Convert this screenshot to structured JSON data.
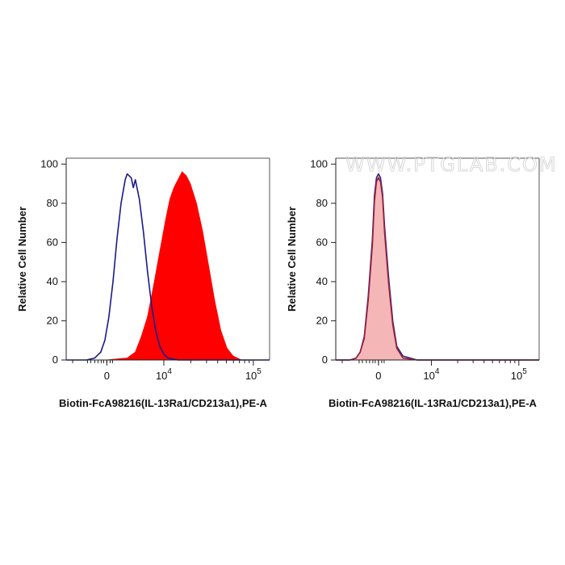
{
  "watermark": "WWW.PTGLAB.COM",
  "chart_data": [
    {
      "type": "area",
      "xlabel": "Biotin-FcA98216(IL-13Ra1/CD213a1),PE-A",
      "ylabel": "Relative Cell Number",
      "y_ticks": [
        "0",
        "20",
        "40",
        "60",
        "80",
        "100"
      ],
      "x_ticks": [
        {
          "base": "0",
          "exp": ""
        },
        {
          "base": "10",
          "exp": "4"
        },
        {
          "base": "10",
          "exp": "5"
        }
      ],
      "ylim": [
        0,
        103
      ],
      "series": [
        {
          "color": "#ff0000",
          "style": "filled",
          "points": [
            [
              0.2,
              0
            ],
            [
              0.3,
              1
            ],
            [
              0.34,
              4
            ],
            [
              0.37,
              12
            ],
            [
              0.4,
              22
            ],
            [
              0.43,
              38
            ],
            [
              0.46,
              55
            ],
            [
              0.49,
              72
            ],
            [
              0.51,
              82
            ],
            [
              0.53,
              88
            ],
            [
              0.55,
              92
            ],
            [
              0.57,
              96
            ],
            [
              0.59,
              94
            ],
            [
              0.61,
              90
            ],
            [
              0.64,
              80
            ],
            [
              0.67,
              66
            ],
            [
              0.7,
              48
            ],
            [
              0.73,
              30
            ],
            [
              0.76,
              15
            ],
            [
              0.79,
              6
            ],
            [
              0.82,
              2
            ],
            [
              0.86,
              0
            ]
          ]
        },
        {
          "color": "#1a1a8c",
          "style": "line",
          "points": [
            [
              0.0,
              0
            ],
            [
              0.1,
              0
            ],
            [
              0.14,
              1
            ],
            [
              0.17,
              4
            ],
            [
              0.19,
              10
            ],
            [
              0.21,
              22
            ],
            [
              0.23,
              40
            ],
            [
              0.25,
              62
            ],
            [
              0.27,
              80
            ],
            [
              0.29,
              92
            ],
            [
              0.3,
              95
            ],
            [
              0.32,
              93
            ],
            [
              0.33,
              88
            ],
            [
              0.34,
              92
            ],
            [
              0.36,
              82
            ],
            [
              0.38,
              65
            ],
            [
              0.4,
              45
            ],
            [
              0.42,
              28
            ],
            [
              0.44,
              15
            ],
            [
              0.46,
              7
            ],
            [
              0.48,
              3
            ],
            [
              0.5,
              1
            ],
            [
              0.55,
              0
            ],
            [
              1.0,
              0
            ]
          ]
        }
      ]
    },
    {
      "type": "area",
      "xlabel": "Biotin-FcA98216(IL-13Ra1/CD213a1),PE-A",
      "ylabel": "Relative Cell Number",
      "y_ticks": [
        "0",
        "20",
        "40",
        "60",
        "80",
        "100"
      ],
      "x_ticks": [
        {
          "base": "0",
          "exp": ""
        },
        {
          "base": "10",
          "exp": "4"
        },
        {
          "base": "10",
          "exp": "5"
        }
      ],
      "ylim": [
        0,
        103
      ],
      "series": [
        {
          "color": "#f4b6b6",
          "style": "filled",
          "points": [
            [
              0.0,
              0
            ],
            [
              0.07,
              0
            ],
            [
              0.1,
              1
            ],
            [
              0.12,
              4
            ],
            [
              0.14,
              12
            ],
            [
              0.16,
              32
            ],
            [
              0.18,
              60
            ],
            [
              0.19,
              82
            ],
            [
              0.2,
              92
            ],
            [
              0.21,
              94
            ],
            [
              0.22,
              92
            ],
            [
              0.23,
              84
            ],
            [
              0.24,
              66
            ],
            [
              0.26,
              40
            ],
            [
              0.28,
              18
            ],
            [
              0.3,
              6
            ],
            [
              0.33,
              1
            ],
            [
              0.4,
              0
            ],
            [
              1.0,
              0
            ]
          ]
        },
        {
          "color": "#2a2a8c",
          "style": "line",
          "points": [
            [
              0.0,
              0
            ],
            [
              0.07,
              0
            ],
            [
              0.1,
              1
            ],
            [
              0.12,
              4
            ],
            [
              0.14,
              12
            ],
            [
              0.16,
              33
            ],
            [
              0.18,
              62
            ],
            [
              0.19,
              84
            ],
            [
              0.2,
              93
            ],
            [
              0.21,
              95
            ],
            [
              0.22,
              93
            ],
            [
              0.23,
              85
            ],
            [
              0.24,
              68
            ],
            [
              0.26,
              42
            ],
            [
              0.28,
              20
            ],
            [
              0.3,
              7
            ],
            [
              0.33,
              2
            ],
            [
              0.4,
              0
            ],
            [
              1.0,
              0
            ]
          ]
        },
        {
          "color": "#9a1f3a",
          "style": "line",
          "points": [
            [
              0.0,
              0
            ],
            [
              0.07,
              0
            ],
            [
              0.1,
              1
            ],
            [
              0.12,
              4
            ],
            [
              0.14,
              11
            ],
            [
              0.16,
              31
            ],
            [
              0.18,
              59
            ],
            [
              0.19,
              81
            ],
            [
              0.2,
              91
            ],
            [
              0.21,
              93
            ],
            [
              0.22,
              91
            ],
            [
              0.23,
              83
            ],
            [
              0.24,
              65
            ],
            [
              0.26,
              39
            ],
            [
              0.28,
              18
            ],
            [
              0.3,
              6
            ],
            [
              0.33,
              1
            ],
            [
              0.4,
              0
            ],
            [
              1.0,
              0
            ]
          ]
        }
      ]
    }
  ]
}
